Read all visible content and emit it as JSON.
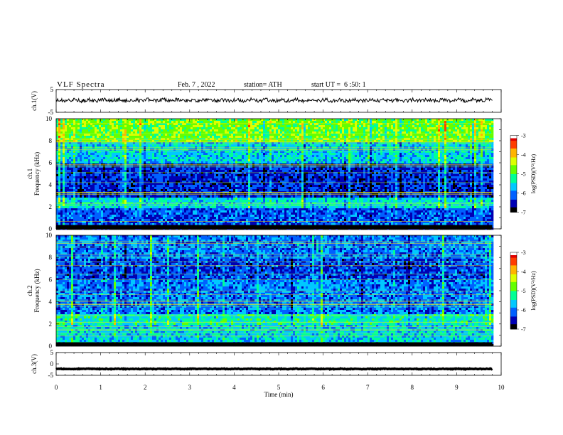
{
  "header": {
    "title": "VLF Spectra",
    "date": "Feb. 7 , 2022",
    "station": "station= ATH",
    "start_ut": "start UT =  6 :50: 1"
  },
  "colors": {
    "waveform": "#000000",
    "colormap": [
      "#000000",
      "#0000b4",
      "#0060ff",
      "#00c8ff",
      "#00ff96",
      "#64ff00",
      "#dcff00",
      "#ffb400",
      "#ff3c00",
      "#e00000",
      "#ffffff"
    ]
  },
  "chart_data": [
    {
      "type": "line",
      "panel": "ch1-waveform",
      "ylabel": "ch.1(V)",
      "yticks": [
        "5",
        "-5"
      ],
      "ylim": [
        -5,
        5
      ],
      "x_range_min": [
        0,
        9.8
      ],
      "approx_level": 0.3,
      "approx_noise_amplitude": 0.8
    },
    {
      "type": "heatmap",
      "panel": "ch1-spectrogram",
      "ylabel": "ch.1\nFrequency (kHz)",
      "yticks": [
        "0",
        "2",
        "4",
        "6",
        "8",
        "10"
      ],
      "ylim": [
        0,
        10
      ],
      "x_range_min": [
        0,
        9.8
      ],
      "colorbar": {
        "label": "log(PSD)(V²/Hz)",
        "ticks": [
          "-3",
          "-4",
          "-5",
          "-6",
          "-7"
        ],
        "range": [
          -7,
          -3
        ]
      },
      "approx_logpsd_by_band": [
        {
          "f_khz": [
            0,
            0.3
          ],
          "level": -7
        },
        {
          "f_khz": [
            0.3,
            2
          ],
          "level": -6.2
        },
        {
          "f_khz": [
            2,
            3
          ],
          "level": -5.5
        },
        {
          "f_khz": [
            3,
            6
          ],
          "level": -6.4
        },
        {
          "f_khz": [
            6,
            8
          ],
          "level": -5.6
        },
        {
          "f_khz": [
            8,
            10
          ],
          "level": -4.8
        }
      ]
    },
    {
      "type": "heatmap",
      "panel": "ch2-spectrogram",
      "ylabel": "ch.2\nFrequency (kHz)",
      "yticks": [
        "0",
        "2",
        "4",
        "6",
        "8",
        "10"
      ],
      "ylim": [
        0,
        10
      ],
      "x_range_min": [
        0,
        9.8
      ],
      "colorbar": {
        "label": "log(PSD)(V²/Hz)",
        "ticks": [
          "-3",
          "-4",
          "-5",
          "-6",
          "-7"
        ],
        "range": [
          -7,
          -3
        ]
      },
      "approx_logpsd_by_band": [
        {
          "f_khz": [
            0,
            0.3
          ],
          "level": -7
        },
        {
          "f_khz": [
            0.3,
            2
          ],
          "level": -5.6
        },
        {
          "f_khz": [
            2,
            3
          ],
          "level": -5.4
        },
        {
          "f_khz": [
            3,
            6
          ],
          "level": -6.0
        },
        {
          "f_khz": [
            6,
            8
          ],
          "level": -6.3
        },
        {
          "f_khz": [
            8,
            10
          ],
          "level": -6.0
        }
      ]
    },
    {
      "type": "line",
      "panel": "ch3-waveform",
      "ylabel": "ch.3(V)",
      "yticks": [
        "5",
        "0",
        "-5"
      ],
      "ylim": [
        -5,
        5
      ],
      "x_range_min": [
        0,
        9.8
      ],
      "approx_level": -2.2,
      "approx_noise_amplitude": 0.15,
      "xlabel": "Time (min)",
      "xticks": [
        "0",
        "1",
        "2",
        "3",
        "4",
        "5",
        "6",
        "7",
        "8",
        "9",
        "10"
      ],
      "xlim": [
        0,
        10
      ]
    }
  ]
}
